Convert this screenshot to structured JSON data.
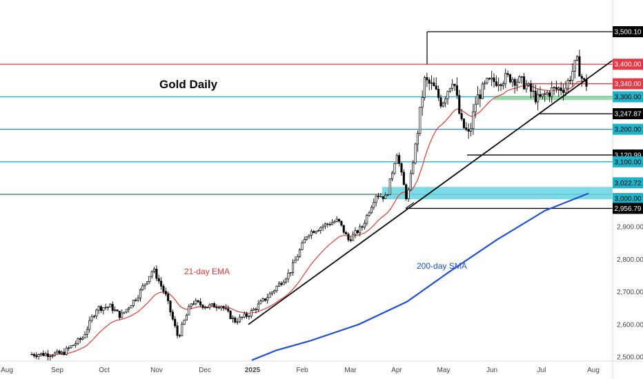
{
  "chart_data": {
    "type": "candlestick",
    "title": "Gold Daily",
    "ylim": [
      2490,
      3560
    ],
    "y_axis_ticks": [
      "2,500.00",
      "2,600.00",
      "2,700.00",
      "2,800.00",
      "2,900.00"
    ],
    "x_axis_labels": [
      "Aug",
      "Sep",
      "Oct",
      "Nov",
      "Dec",
      "2025",
      "Feb",
      "Mar",
      "Apr",
      "May",
      "Jun",
      "Jul",
      "Aug"
    ],
    "grid": false,
    "colors": {
      "candle": "#000000",
      "ema": "#e53935",
      "sma": "#1e4fd6",
      "red_level": "#e53946",
      "cyan_level": "#1fb3c9",
      "blue_level": "#2a8fd6",
      "green_level": "#1e7d4c",
      "zone_green": "#8fd19e",
      "zone_cyan": "#63d3e0",
      "trendline": "#000000"
    },
    "series": [
      {
        "name": "21-day EMA",
        "type": "line"
      },
      {
        "name": "200-day SMA",
        "type": "line"
      }
    ],
    "price_levels": [
      {
        "value": 3500.1,
        "label": "3,500.10",
        "style": "black"
      },
      {
        "value": 3400.0,
        "label": "3,400.00",
        "style": "red"
      },
      {
        "value": 3340.0,
        "label": "3,340.00",
        "style": "red"
      },
      {
        "value": 3300.0,
        "label": "3,300.00",
        "style": "cyan"
      },
      {
        "value": 3247.87,
        "label": "3,247.87",
        "style": "black"
      },
      {
        "value": 3200.0,
        "label": "3,200.00",
        "style": "cyan"
      },
      {
        "value": 3120.99,
        "label": "3,120.99",
        "style": "black"
      },
      {
        "value": 3100.0,
        "label": "3,100.00",
        "style": "cyan"
      },
      {
        "value": 3022.72,
        "label": "3,022.72",
        "style": "cyan"
      },
      {
        "value": 3000.0,
        "label": "3,000.00",
        "style": "cyan"
      },
      {
        "value": 2956.79,
        "label": "2,956.79",
        "style": "black"
      }
    ],
    "zones": [
      {
        "from": 3290,
        "to": 3303,
        "color": "green"
      },
      {
        "from": 2985,
        "to": 3022.72,
        "color": "cyan"
      }
    ]
  }
}
